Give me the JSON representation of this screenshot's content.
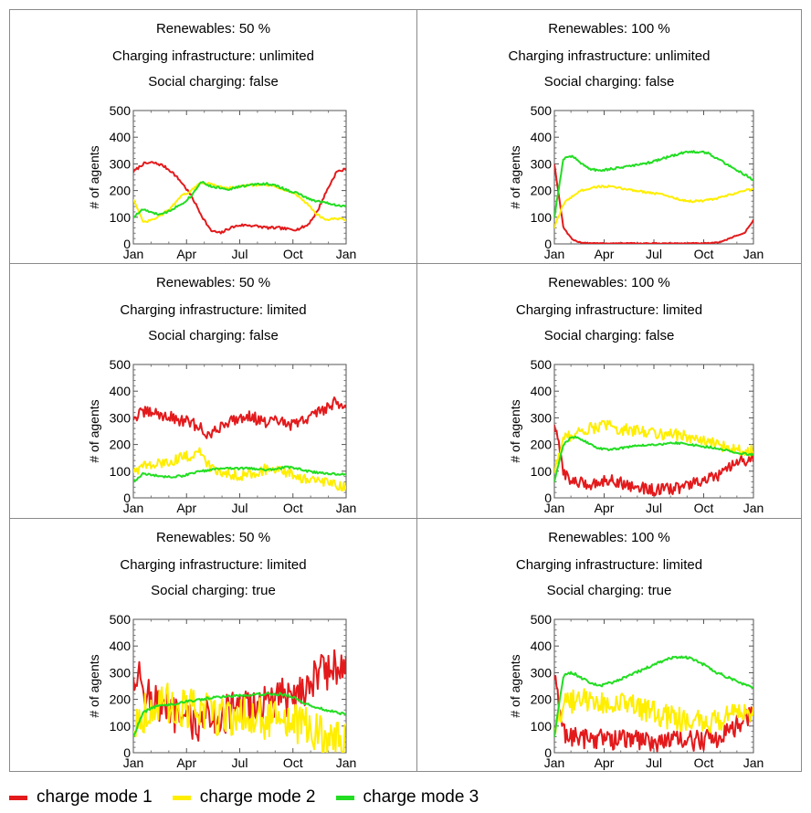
{
  "legend": [
    {
      "label": "charge mode 1",
      "color": "#e31a1c"
    },
    {
      "label": "charge mode 2",
      "color": "#ffee00"
    },
    {
      "label": "charge mode 3",
      "color": "#22dd22"
    }
  ],
  "chart_data": [
    {
      "type": "line",
      "title": [
        "Renewables: 50 %",
        "Charging infrastructure: unlimited",
        "Social charging: false"
      ],
      "ylabel": "# of agents",
      "ylim": [
        0,
        500
      ],
      "yticks": [
        "0",
        "100",
        "200",
        "300",
        "400",
        "500"
      ],
      "x_ticks": [
        "Jan",
        "Apr",
        "Jul",
        "Oct",
        "Jan"
      ],
      "series": [
        {
          "name": "charge mode 1",
          "color": "#e31a1c",
          "noise": 5,
          "values": [
            270,
            300,
            305,
            295,
            270,
            230,
            180,
            110,
            50,
            40,
            60,
            70,
            70,
            65,
            60,
            60,
            55,
            55,
            70,
            120,
            200,
            270,
            280
          ]
        },
        {
          "name": "charge mode 2",
          "color": "#ffee00",
          "noise": 4,
          "values": [
            170,
            80,
            90,
            110,
            140,
            180,
            200,
            230,
            225,
            215,
            210,
            215,
            220,
            220,
            220,
            210,
            200,
            180,
            150,
            110,
            90,
            95,
            90
          ]
        },
        {
          "name": "charge mode 3",
          "color": "#22dd22",
          "noise": 4,
          "values": [
            100,
            130,
            115,
            110,
            130,
            150,
            180,
            235,
            215,
            210,
            205,
            215,
            220,
            225,
            225,
            215,
            200,
            190,
            170,
            160,
            155,
            145,
            140
          ]
        }
      ]
    },
    {
      "type": "line",
      "title": [
        "Renewables: 100 %",
        "Charging infrastructure: unlimited",
        "Social charging: false"
      ],
      "ylabel": "# of agents",
      "ylim": [
        0,
        500
      ],
      "yticks": [
        "0",
        "100",
        "200",
        "300",
        "400",
        "500"
      ],
      "x_ticks": [
        "Jan",
        "Apr",
        "Jul",
        "Oct",
        "Jan"
      ],
      "series": [
        {
          "name": "charge mode 1",
          "color": "#e31a1c",
          "noise": 2,
          "values": [
            300,
            60,
            15,
            5,
            3,
            2,
            2,
            2,
            2,
            2,
            2,
            2,
            2,
            2,
            2,
            2,
            2,
            2,
            5,
            15,
            30,
            40,
            90
          ]
        },
        {
          "name": "charge mode 2",
          "color": "#ffee00",
          "noise": 4,
          "values": [
            60,
            150,
            180,
            200,
            210,
            215,
            215,
            210,
            205,
            200,
            195,
            190,
            185,
            175,
            165,
            160,
            160,
            165,
            170,
            180,
            190,
            200,
            205
          ]
        },
        {
          "name": "charge mode 3",
          "color": "#22dd22",
          "noise": 4,
          "values": [
            100,
            320,
            330,
            300,
            280,
            275,
            280,
            285,
            290,
            295,
            300,
            310,
            320,
            330,
            340,
            345,
            345,
            340,
            320,
            300,
            280,
            260,
            240
          ]
        }
      ]
    },
    {
      "type": "line",
      "title": [
        "Renewables: 50 %",
        "Charging infrastructure: limited",
        "Social charging: false"
      ],
      "ylabel": "# of agents",
      "ylim": [
        0,
        500
      ],
      "yticks": [
        "0",
        "100",
        "200",
        "300",
        "400",
        "500"
      ],
      "x_ticks": [
        "Jan",
        "Apr",
        "Jul",
        "Oct",
        "Jan"
      ],
      "series": [
        {
          "name": "charge mode 1",
          "color": "#e31a1c",
          "noise": 22,
          "values": [
            300,
            320,
            320,
            310,
            300,
            290,
            280,
            260,
            230,
            270,
            290,
            300,
            310,
            290,
            280,
            290,
            270,
            280,
            300,
            320,
            340,
            360,
            340
          ]
        },
        {
          "name": "charge mode 2",
          "color": "#ffee00",
          "noise": 20,
          "values": [
            100,
            120,
            120,
            130,
            140,
            150,
            160,
            170,
            110,
            100,
            90,
            85,
            90,
            100,
            110,
            100,
            90,
            80,
            70,
            60,
            55,
            50,
            45
          ]
        },
        {
          "name": "charge mode 3",
          "color": "#22dd22",
          "noise": 4,
          "values": [
            60,
            90,
            85,
            80,
            80,
            82,
            90,
            100,
            105,
            110,
            110,
            110,
            110,
            108,
            105,
            110,
            115,
            110,
            100,
            95,
            90,
            90,
            88
          ]
        }
      ]
    },
    {
      "type": "line",
      "title": [
        "Renewables: 100 %",
        "Charging infrastructure: limited",
        "Social charging: false"
      ],
      "ylabel": "# of agents",
      "ylim": [
        0,
        500
      ],
      "yticks": [
        "0",
        "100",
        "200",
        "300",
        "400",
        "500"
      ],
      "x_ticks": [
        "Jan",
        "Apr",
        "Jul",
        "Oct",
        "Jan"
      ],
      "series": [
        {
          "name": "charge mode 1",
          "color": "#e31a1c",
          "noise": 22,
          "values": [
            280,
            100,
            60,
            55,
            50,
            60,
            70,
            60,
            50,
            40,
            35,
            30,
            30,
            35,
            40,
            50,
            60,
            70,
            80,
            100,
            130,
            140,
            150
          ]
        },
        {
          "name": "charge mode 2",
          "color": "#ffee00",
          "noise": 22,
          "values": [
            100,
            220,
            240,
            250,
            260,
            270,
            270,
            260,
            255,
            250,
            250,
            245,
            240,
            240,
            235,
            225,
            215,
            205,
            200,
            190,
            185,
            180,
            175
          ]
        },
        {
          "name": "charge mode 3",
          "color": "#22dd22",
          "noise": 4,
          "values": [
            60,
            200,
            230,
            220,
            200,
            185,
            180,
            185,
            190,
            195,
            198,
            200,
            202,
            205,
            205,
            200,
            195,
            190,
            185,
            180,
            170,
            165,
            160
          ]
        }
      ]
    },
    {
      "type": "line",
      "title": [
        "Renewables: 50 %",
        "Charging infrastructure: limited",
        "Social charging: true"
      ],
      "ylabel": "# of agents",
      "ylim": [
        0,
        500
      ],
      "yticks": [
        "0",
        "100",
        "200",
        "300",
        "400",
        "500"
      ],
      "x_ticks": [
        "Jan",
        "Apr",
        "Jul",
        "Oct",
        "Jan"
      ],
      "series": [
        {
          "name": "charge mode 1",
          "color": "#e31a1c",
          "noise": 75,
          "values": [
            300,
            250,
            200,
            160,
            140,
            120,
            110,
            120,
            130,
            140,
            150,
            160,
            170,
            180,
            190,
            200,
            210,
            230,
            260,
            290,
            310,
            320,
            310
          ]
        },
        {
          "name": "charge mode 2",
          "color": "#ffee00",
          "noise": 80,
          "values": [
            100,
            150,
            170,
            180,
            180,
            170,
            160,
            150,
            145,
            140,
            140,
            140,
            135,
            130,
            125,
            120,
            110,
            100,
            90,
            70,
            50,
            40,
            40
          ]
        },
        {
          "name": "charge mode 3",
          "color": "#22dd22",
          "noise": 5,
          "values": [
            60,
            150,
            170,
            180,
            180,
            190,
            195,
            200,
            205,
            210,
            212,
            215,
            218,
            220,
            220,
            220,
            215,
            200,
            180,
            170,
            160,
            150,
            145
          ]
        }
      ]
    },
    {
      "type": "line",
      "title": [
        "Renewables: 100 %",
        "Charging infrastructure: limited",
        "Social charging: true"
      ],
      "ylabel": "# of agents",
      "ylim": [
        0,
        500
      ],
      "yticks": [
        "0",
        "100",
        "200",
        "300",
        "400",
        "500"
      ],
      "x_ticks": [
        "Jan",
        "Apr",
        "Jul",
        "Oct",
        "Jan"
      ],
      "series": [
        {
          "name": "charge mode 1",
          "color": "#e31a1c",
          "noise": 40,
          "values": [
            280,
            80,
            60,
            55,
            55,
            55,
            50,
            50,
            50,
            50,
            45,
            45,
            45,
            45,
            45,
            45,
            45,
            50,
            60,
            80,
            100,
            120,
            140
          ]
        },
        {
          "name": "charge mode 2",
          "color": "#ffee00",
          "noise": 45,
          "values": [
            100,
            180,
            190,
            195,
            195,
            190,
            185,
            180,
            175,
            170,
            160,
            150,
            140,
            130,
            125,
            120,
            115,
            115,
            120,
            130,
            140,
            150,
            160
          ]
        },
        {
          "name": "charge mode 3",
          "color": "#22dd22",
          "noise": 5,
          "values": [
            60,
            290,
            300,
            280,
            260,
            250,
            260,
            270,
            285,
            300,
            315,
            330,
            345,
            355,
            360,
            355,
            340,
            320,
            300,
            285,
            270,
            255,
            240
          ]
        }
      ]
    }
  ]
}
